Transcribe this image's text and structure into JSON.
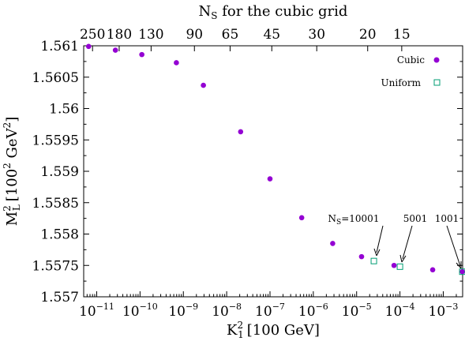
{
  "chart_data": {
    "type": "scatter",
    "xscale": "log",
    "xlim": [
      5e-12,
      0.0028
    ],
    "ylim": [
      1.557,
      1.561
    ],
    "grid": false,
    "legend_position": "top-right",
    "xlabel_main": "K",
    "xlabel_sub": "1",
    "xlabel_sup": "2",
    "xlabel_unit": "[100 GeV]",
    "ylabel_main": "M",
    "ylabel_sub": "L",
    "ylabel_sup": "2",
    "ylabel_unit_pre": "[100",
    "ylabel_unit_sup1": "2",
    "ylabel_unit_mid": " GeV",
    "ylabel_unit_sup2": "2",
    "ylabel_unit_post": "]",
    "top_axis_label_main": "N",
    "top_axis_label_sub": "S",
    "top_axis_label_rest": " for the cubic grid",
    "xticks": [
      {
        "value": 1e-11,
        "base": "10",
        "exp": "−11"
      },
      {
        "value": 1e-10,
        "base": "10",
        "exp": "−10"
      },
      {
        "value": 1e-09,
        "base": "10",
        "exp": "−9"
      },
      {
        "value": 1e-08,
        "base": "10",
        "exp": "−8"
      },
      {
        "value": 1e-07,
        "base": "10",
        "exp": "−7"
      },
      {
        "value": 1e-06,
        "base": "10",
        "exp": "−6"
      },
      {
        "value": 1e-05,
        "base": "10",
        "exp": "−5"
      },
      {
        "value": 0.0001,
        "base": "10",
        "exp": "−4"
      },
      {
        "value": 0.001,
        "base": "10",
        "exp": "−3"
      }
    ],
    "yticks": [
      {
        "value": 1.557,
        "label": "1.557"
      },
      {
        "value": 1.5575,
        "label": "1.5575"
      },
      {
        "value": 1.558,
        "label": "1.558"
      },
      {
        "value": 1.5585,
        "label": "1.5585"
      },
      {
        "value": 1.559,
        "label": "1.559"
      },
      {
        "value": 1.5595,
        "label": "1.5595"
      },
      {
        "value": 1.56,
        "label": "1.56"
      },
      {
        "value": 1.5605,
        "label": "1.5605"
      },
      {
        "value": 1.561,
        "label": "1.561"
      }
    ],
    "top_ticks": [
      {
        "x": 8e-12,
        "label": "250"
      },
      {
        "x": 3.3e-11,
        "label": "180"
      },
      {
        "x": 1.8e-10,
        "label": "130"
      },
      {
        "x": 1.8e-09,
        "label": "90"
      },
      {
        "x": 1.2e-08,
        "label": "65"
      },
      {
        "x": 1.1e-07,
        "label": "45"
      },
      {
        "x": 1.2e-06,
        "label": "30"
      },
      {
        "x": 1.8e-05,
        "label": "20"
      },
      {
        "x": 0.00011,
        "label": "15"
      }
    ],
    "series": [
      {
        "name": "Cubic",
        "marker": "filled-circle",
        "color": "#9400d3",
        "points": [
          {
            "x": 6.5e-12,
            "y": 1.56099
          },
          {
            "x": 2.7e-11,
            "y": 1.56093
          },
          {
            "x": 1.1e-10,
            "y": 1.56086
          },
          {
            "x": 6.9e-10,
            "y": 1.56073
          },
          {
            "x": 2.9e-09,
            "y": 1.56037
          },
          {
            "x": 2.1e-08,
            "y": 1.55963
          },
          {
            "x": 1e-07,
            "y": 1.55888
          },
          {
            "x": 5.4e-07,
            "y": 1.55826
          },
          {
            "x": 2.8e-06,
            "y": 1.55785
          },
          {
            "x": 1.3e-05,
            "y": 1.55764
          },
          {
            "x": 7.3e-05,
            "y": 1.5575
          },
          {
            "x": 0.00057,
            "y": 1.55743
          },
          {
            "x": 0.00275,
            "y": 1.5574
          }
        ]
      },
      {
        "name": "Uniform",
        "marker": "open-square",
        "color": "#009e73",
        "points": [
          {
            "x": 2.5e-05,
            "y": 1.55757
          },
          {
            "x": 0.0001,
            "y": 1.55748
          },
          {
            "x": 0.00275,
            "y": 1.5574
          }
        ]
      }
    ],
    "annotations": [
      {
        "label_main": "N",
        "label_sub": "S",
        "label_rest": "=10001",
        "points_to_x": 2.5e-05,
        "points_to_y": 1.55757
      },
      {
        "label": "5001",
        "points_to_x": 0.0001,
        "points_to_y": 1.55748
      },
      {
        "label": "1001",
        "points_to_x": 0.00275,
        "points_to_y": 1.5574
      }
    ]
  }
}
